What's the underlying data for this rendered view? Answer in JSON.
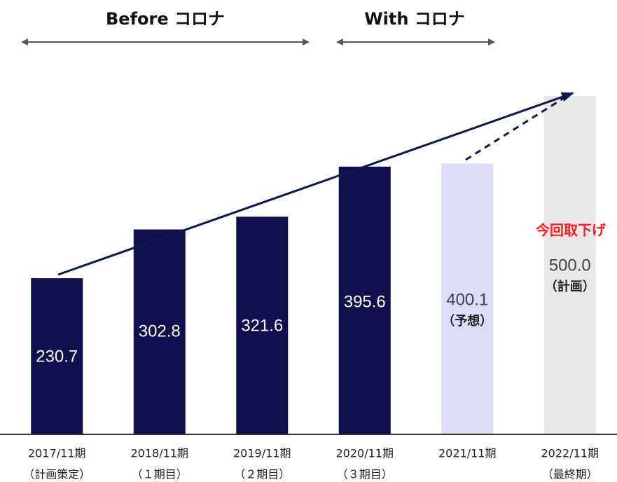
{
  "chart_data": {
    "type": "bar",
    "periods": [
      {
        "label": "Before コロナ"
      },
      {
        "label": "With コロナ"
      }
    ],
    "categories": [
      "2017/11期",
      "2018/11期",
      "2019/11期",
      "2020/11期",
      "2021/11期",
      "2022/11期"
    ],
    "sublabels": [
      "（計画策定）",
      "（１期目）",
      "（２期目）",
      "（３期目）",
      null,
      "（最終期）"
    ],
    "values": [
      230.7,
      302.8,
      321.6,
      395.6,
      400.1,
      500.0
    ],
    "value_labels": [
      "230.7",
      "302.8",
      "321.6",
      "395.6",
      "400.1",
      "500.0"
    ],
    "notes": [
      null,
      null,
      null,
      null,
      "（予想）",
      "（計画）"
    ],
    "colors": [
      "#10104e",
      "#10104e",
      "#10104e",
      "#10104e",
      "#dcdcf8",
      "#e8e8e8"
    ],
    "annotation": "今回取下げ"
  }
}
